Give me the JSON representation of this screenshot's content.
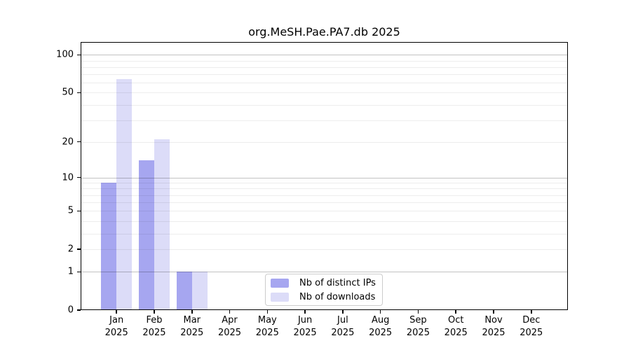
{
  "chart_data": {
    "type": "bar",
    "title": "org.MeSH.Pae.PA7.db 2025",
    "categories": [
      "Jan",
      "Feb",
      "Mar",
      "Apr",
      "May",
      "Jun",
      "Jul",
      "Aug",
      "Sep",
      "Oct",
      "Nov",
      "Dec"
    ],
    "category_year": "2025",
    "series": [
      {
        "name": "Nb of distinct IPs",
        "color": "#a6a6f0",
        "values": [
          9,
          14,
          1,
          0,
          0,
          0,
          0,
          0,
          0,
          0,
          0,
          0
        ]
      },
      {
        "name": "Nb of downloads",
        "color": "#dcdcf8",
        "values": [
          64,
          21,
          1,
          0,
          0,
          0,
          0,
          0,
          0,
          0,
          0,
          0
        ]
      }
    ],
    "yscale": "log1p",
    "ylim": [
      0,
      126.6
    ],
    "yticks": [
      100,
      50,
      20,
      10,
      5,
      2,
      1,
      0
    ],
    "major_gridlines": [
      1,
      10,
      100
    ],
    "minor_gridlines": [
      2,
      3,
      4,
      5,
      6,
      7,
      8,
      9,
      20,
      30,
      40,
      50,
      60,
      70,
      80,
      90
    ],
    "grid": "horizontal",
    "legend_position": "inside-bottom-center"
  },
  "legend": {
    "items": [
      {
        "label": "Nb of distinct IPs",
        "swatch": "#a6a6f0"
      },
      {
        "label": "Nb of downloads",
        "swatch": "#dcdcf8"
      }
    ]
  },
  "colors": {
    "axis": "#000000",
    "text": "#000000",
    "grid_major": "rgba(0,0,0,0.24)",
    "grid_minor": "rgba(0,0,0,0.07)",
    "legend_border": "#cccccc",
    "background": "#ffffff"
  }
}
